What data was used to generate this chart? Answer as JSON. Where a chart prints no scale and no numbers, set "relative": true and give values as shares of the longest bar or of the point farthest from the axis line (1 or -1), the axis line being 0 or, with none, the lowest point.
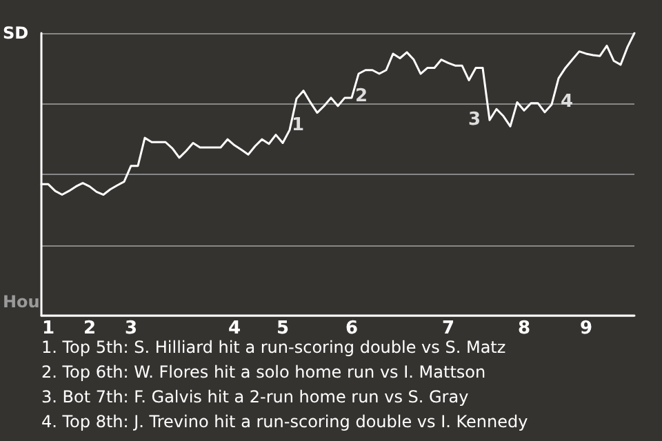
{
  "chart_data": {
    "type": "line",
    "relative": true,
    "categories": [
      null,
      "1",
      null,
      null,
      null,
      null,
      null,
      "2",
      null,
      null,
      null,
      null,
      null,
      "3",
      null,
      null,
      null,
      null,
      null,
      null,
      null,
      null,
      null,
      null,
      null,
      null,
      null,
      null,
      "4",
      null,
      null,
      null,
      null,
      null,
      null,
      "5",
      null,
      null,
      null,
      null,
      null,
      null,
      null,
      null,
      null,
      "6",
      null,
      null,
      null,
      null,
      null,
      null,
      null,
      null,
      null,
      null,
      null,
      null,
      null,
      "7",
      null,
      null,
      null,
      null,
      null,
      null,
      null,
      null,
      null,
      null,
      "8",
      null,
      null,
      null,
      null,
      null,
      null,
      null,
      null,
      "9",
      null,
      null,
      null,
      null,
      null,
      null,
      null
    ],
    "series": [
      {
        "color": "#ffffff",
        "values": [
          0.465,
          0.465,
          0.441,
          0.428,
          0.441,
          0.457,
          0.469,
          0.457,
          0.438,
          0.428,
          0.447,
          0.461,
          0.474,
          0.53,
          0.53,
          0.629,
          0.614,
          0.614,
          0.614,
          0.592,
          0.559,
          0.583,
          0.611,
          0.595,
          0.595,
          0.595,
          0.595,
          0.624,
          0.603,
          0.587,
          0.57,
          0.6,
          0.624,
          0.608,
          0.64,
          0.611,
          0.657,
          0.768,
          0.796,
          0.755,
          0.718,
          0.742,
          0.771,
          0.742,
          0.771,
          0.771,
          0.856,
          0.869,
          0.869,
          0.856,
          0.869,
          0.927,
          0.911,
          0.932,
          0.906,
          0.856,
          0.877,
          0.877,
          0.906,
          0.894,
          0.885,
          0.885,
          0.833,
          0.877,
          0.877,
          0.692,
          0.731,
          0.706,
          0.67,
          0.755,
          0.726,
          0.752,
          0.752,
          0.72,
          0.747,
          0.84,
          0.877,
          0.906,
          0.935,
          0.927,
          0.922,
          0.919,
          0.955,
          0.902,
          0.888,
          0.951,
          1
        ]
      }
    ],
    "grid": "y",
    "marker": "none",
    "line_style": "solid",
    "annotations": [
      "SD",
      "Hou",
      "1",
      "2",
      "3",
      "4",
      "1. Top 5th: S. Hilliard hit a run-scoring double vs S. Matz",
      "2. Top 6th: W. Flores hit a solo home run vs I. Mattson",
      "3. Bot 7th: F. Galvis hit a 2-run home run vs S. Gray",
      "4. Top 8th: J. Trevino hit a run-scoring double vs I. Kennedy"
    ]
  }
}
